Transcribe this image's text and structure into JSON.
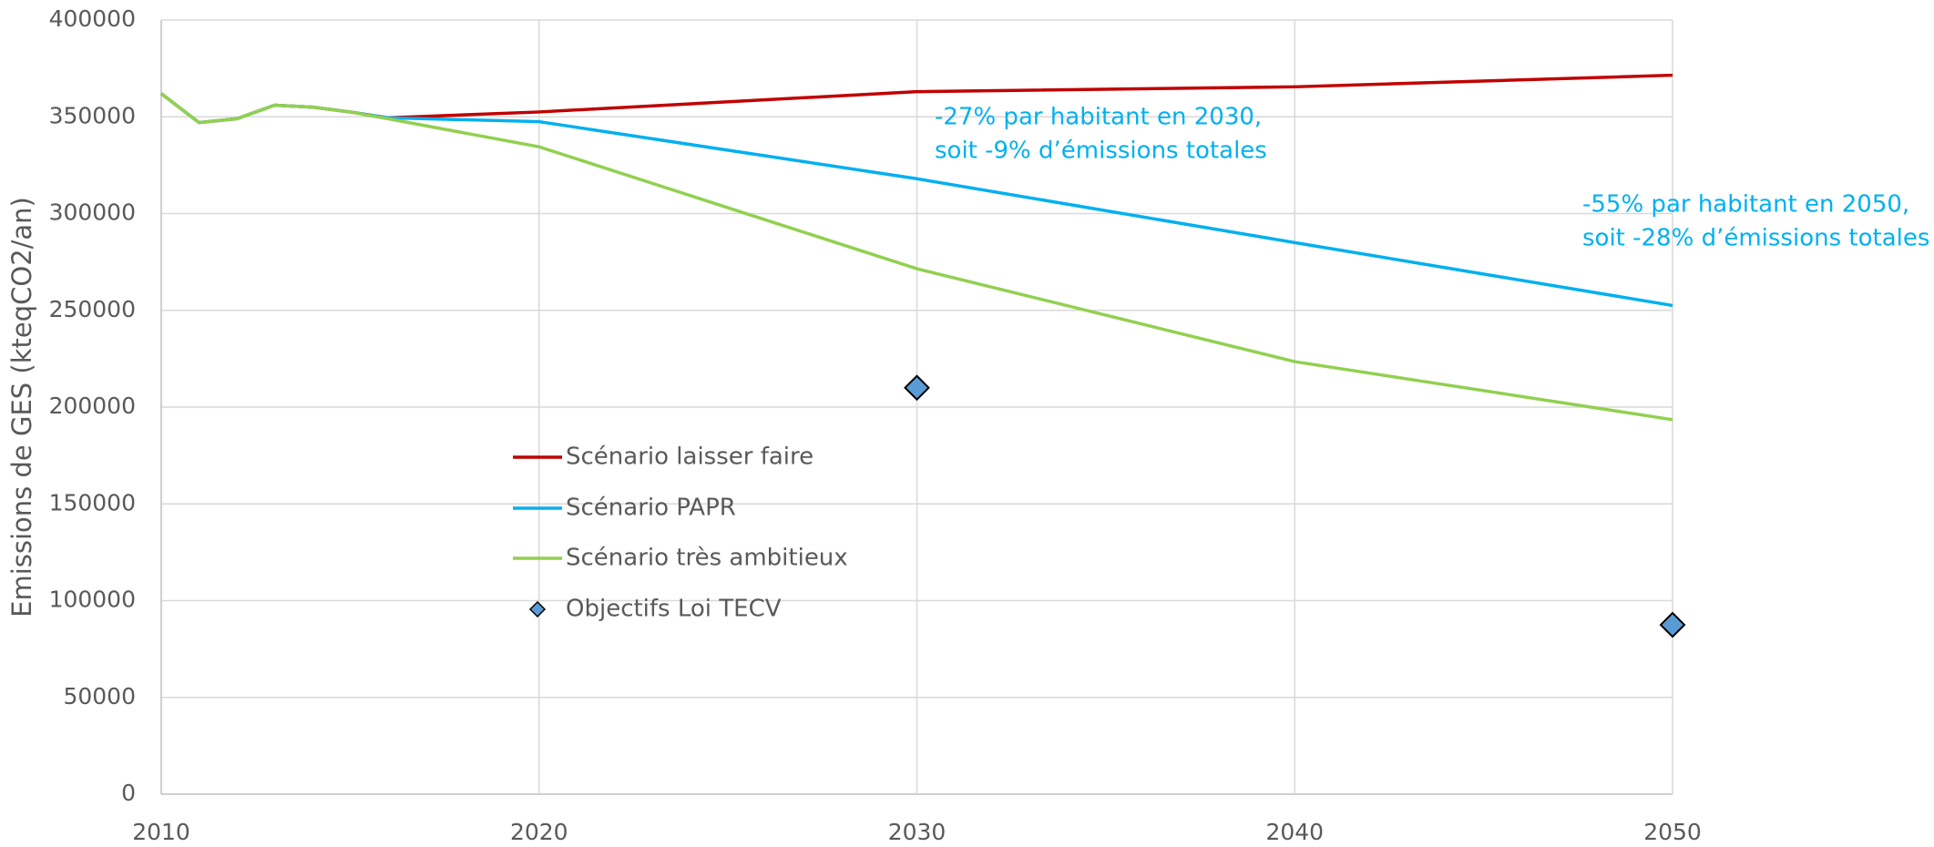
{
  "chart_data": {
    "type": "line",
    "y_label": "Emissions de GES (kteqCO2/an)",
    "x": [
      2010,
      2011,
      2012,
      2013,
      2014,
      2015,
      2016,
      2020,
      2030,
      2040,
      2050
    ],
    "series": [
      {
        "name": "Scénario laisser faire",
        "color": "#c00000",
        "values": [
          362000,
          347000,
          349000,
          356000,
          355000,
          352500,
          349500,
          352500,
          363000,
          365500,
          371500
        ]
      },
      {
        "name": "Scénario PAPR",
        "color": "#00b0f0",
        "values": [
          362000,
          347000,
          349000,
          356000,
          355000,
          352500,
          349500,
          347500,
          318000,
          285000,
          252500
        ]
      },
      {
        "name": "Scénario très ambitieux",
        "color": "#92d050",
        "values": [
          362000,
          347000,
          349000,
          356000,
          355000,
          352500,
          349000,
          334500,
          271500,
          223500,
          193500
        ]
      }
    ],
    "markers": {
      "name": "Objectifs Loi TECV",
      "color": "#5b9bd5",
      "x": [
        2030,
        2050
      ],
      "values": [
        210000,
        87500
      ]
    },
    "annotations": [
      [
        "-27% par habitant en 2030,",
        "soit -9% d’émissions totales"
      ],
      [
        "-55% par habitant en 2050,",
        "soit -28% d’émissions totales"
      ]
    ],
    "annotation_color": "#00b0f0",
    "xlim": [
      2010,
      2050
    ],
    "xticks": [
      2010,
      2020,
      2030,
      2040,
      2050
    ],
    "ylim": [
      0,
      400000
    ],
    "yticks": [
      0,
      50000,
      100000,
      150000,
      200000,
      250000,
      300000,
      350000,
      400000
    ],
    "grid": true
  }
}
